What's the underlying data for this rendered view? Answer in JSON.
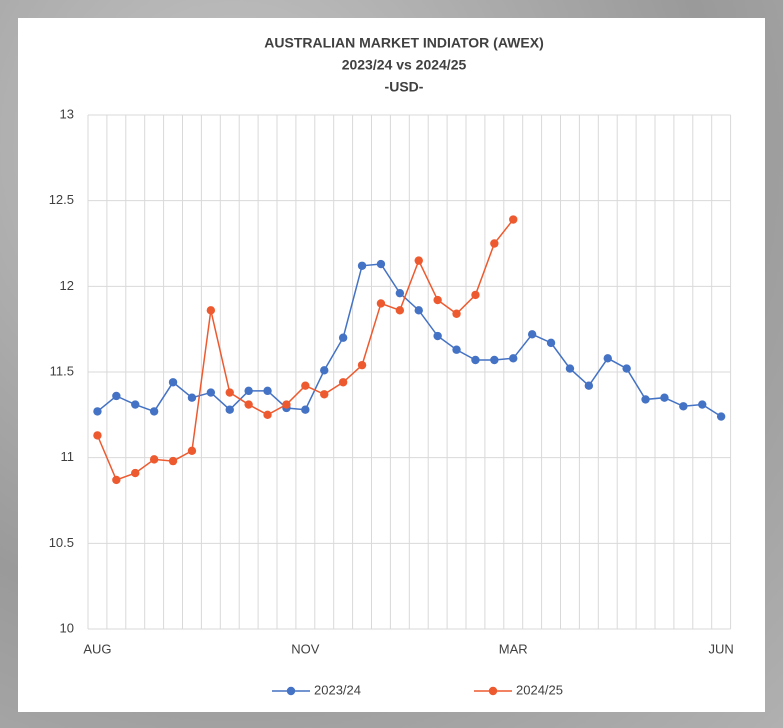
{
  "chart_data": {
    "type": "line",
    "title": "AUSTRALIAN MARKET INDIATOR (AWEX)",
    "subtitle": [
      "2023/24 vs 2024/25",
      "-USD-"
    ],
    "categories": [
      "AUG",
      null,
      null,
      null,
      null,
      null,
      null,
      null,
      null,
      null,
      null,
      "NOV",
      null,
      null,
      null,
      null,
      null,
      null,
      null,
      null,
      null,
      null,
      "MAR",
      null,
      null,
      null,
      null,
      null,
      null,
      null,
      null,
      null,
      null,
      "JUN"
    ],
    "series": [
      {
        "name": "2023/24",
        "color": "#4472c4",
        "values": [
          11.27,
          11.36,
          11.31,
          11.27,
          11.44,
          11.35,
          11.38,
          11.28,
          11.39,
          11.39,
          11.29,
          11.28,
          11.51,
          11.7,
          12.12,
          12.13,
          11.96,
          11.86,
          11.71,
          11.63,
          11.57,
          11.57,
          11.58,
          11.72,
          11.67,
          11.52,
          11.42,
          11.58,
          11.52,
          11.34,
          11.35,
          11.3,
          11.31,
          11.24
        ]
      },
      {
        "name": "2024/25",
        "color": "#ee5a2f",
        "values": [
          11.13,
          10.87,
          10.91,
          10.99,
          10.98,
          11.04,
          11.86,
          11.38,
          11.31,
          11.25,
          11.31,
          11.42,
          11.37,
          11.44,
          11.54,
          11.9,
          11.86,
          12.15,
          11.92,
          11.84,
          11.95,
          12.25,
          12.39,
          null,
          null,
          null,
          null,
          null,
          null,
          null,
          null,
          null,
          null,
          null
        ]
      }
    ],
    "ylim": [
      10,
      13
    ],
    "yticks": [
      10,
      10.5,
      11,
      11.5,
      12,
      12.5,
      13
    ],
    "grid": true,
    "legend": "bottom"
  }
}
